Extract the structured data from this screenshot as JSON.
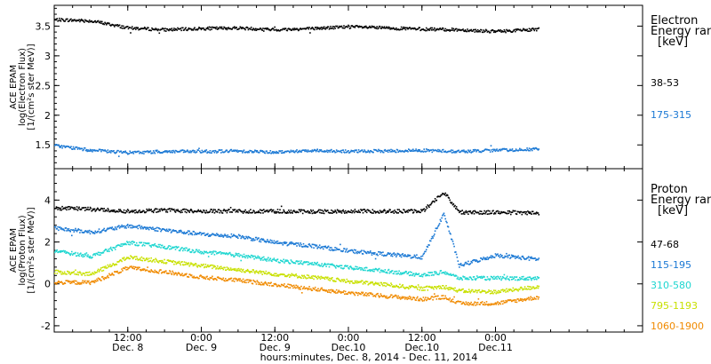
{
  "chart_data": [
    {
      "type": "scatter",
      "ylabel": [
        "ACE EPAM",
        "log(Electron Flux)",
        "[1/(cm²s ster MeV)]"
      ],
      "yticks": [
        1.5,
        2.0,
        2.5,
        3.0,
        3.5
      ],
      "ylim": [
        1.1,
        3.85
      ],
      "legend_title": [
        "Electron",
        "Energy ran",
        "[keV]"
      ],
      "series": [
        {
          "name": "38-53",
          "color": "#000000",
          "x": [
            0,
            6,
            12,
            18,
            24,
            30,
            36,
            42,
            48,
            54,
            60,
            66,
            72,
            79
          ],
          "y": [
            3.62,
            3.6,
            3.48,
            3.45,
            3.47,
            3.48,
            3.45,
            3.47,
            3.5,
            3.48,
            3.46,
            3.45,
            3.42,
            3.46
          ]
        },
        {
          "name": "175-315",
          "color": "#1a78d4",
          "x": [
            0,
            6,
            12,
            18,
            24,
            30,
            36,
            42,
            48,
            54,
            60,
            66,
            72,
            79
          ],
          "y": [
            1.5,
            1.42,
            1.38,
            1.4,
            1.4,
            1.41,
            1.39,
            1.42,
            1.4,
            1.41,
            1.42,
            1.4,
            1.42,
            1.44
          ]
        }
      ]
    },
    {
      "type": "scatter",
      "ylabel": [
        "ACE EPAM",
        "log(Proton Flux)",
        "[1/(cm²s ster MeV)]"
      ],
      "yticks": [
        -2,
        0,
        2,
        4
      ],
      "ylim": [
        -2.3,
        5.5
      ],
      "legend_title": [
        "Proton",
        "Energy ran",
        "[keV]"
      ],
      "series": [
        {
          "name": "47-68",
          "color": "#000000",
          "x": [
            0,
            6,
            12,
            18,
            24,
            30,
            36,
            42,
            48,
            54,
            60,
            63.5,
            66,
            72,
            79
          ],
          "y": [
            3.65,
            3.6,
            3.5,
            3.55,
            3.5,
            3.5,
            3.5,
            3.48,
            3.5,
            3.5,
            3.5,
            4.4,
            3.45,
            3.45,
            3.42
          ]
        },
        {
          "name": "115-195",
          "color": "#1a78d4",
          "x": [
            0,
            6,
            12,
            18,
            24,
            30,
            36,
            42,
            48,
            54,
            60,
            63.5,
            66,
            72,
            79
          ],
          "y": [
            2.7,
            2.5,
            2.8,
            2.6,
            2.4,
            2.3,
            2.0,
            1.85,
            1.6,
            1.45,
            1.3,
            3.4,
            0.9,
            1.4,
            1.2
          ]
        },
        {
          "name": "310-580",
          "color": "#1ed6d0",
          "x": [
            0,
            6,
            12,
            18,
            24,
            30,
            36,
            42,
            48,
            54,
            60,
            63.5,
            66,
            72,
            79
          ],
          "y": [
            1.6,
            1.35,
            2.0,
            1.8,
            1.55,
            1.4,
            1.15,
            1.0,
            0.8,
            0.65,
            0.45,
            0.6,
            0.3,
            0.3,
            0.3
          ]
        },
        {
          "name": "795-1193",
          "color": "#c8e000",
          "x": [
            0,
            6,
            12,
            18,
            24,
            30,
            36,
            42,
            48,
            54,
            60,
            63.5,
            66,
            72,
            79
          ],
          "y": [
            0.6,
            0.5,
            1.3,
            1.1,
            0.9,
            0.7,
            0.5,
            0.35,
            0.15,
            0.0,
            -0.2,
            -0.1,
            -0.3,
            -0.35,
            -0.1
          ]
        },
        {
          "name": "1060-1900",
          "color": "#f08a00",
          "x": [
            0,
            6,
            12,
            18,
            24,
            30,
            36,
            42,
            48,
            54,
            60,
            63.5,
            66,
            72,
            79
          ],
          "y": [
            0.1,
            0.1,
            0.8,
            0.6,
            0.35,
            0.2,
            0.0,
            -0.2,
            -0.4,
            -0.55,
            -0.7,
            -0.6,
            -0.9,
            -0.9,
            -0.6
          ]
        }
      ]
    }
  ],
  "xaxis": {
    "range": [
      0,
      96
    ],
    "ticks": [
      {
        "x": 12,
        "time": "12:00",
        "date": "Dec. 8"
      },
      {
        "x": 24,
        "time": "0:00",
        "date": "Dec. 9"
      },
      {
        "x": 36,
        "time": "12:00",
        "date": "Dec. 9"
      },
      {
        "x": 48,
        "time": "0:00",
        "date": "Dec.10"
      },
      {
        "x": 60,
        "time": "12:00",
        "date": "Dec.10"
      },
      {
        "x": 72,
        "time": "0:00",
        "date": "Dec.11"
      }
    ],
    "label": "hours:minutes, Dec.  8, 2014 - Dec. 11, 2014"
  }
}
